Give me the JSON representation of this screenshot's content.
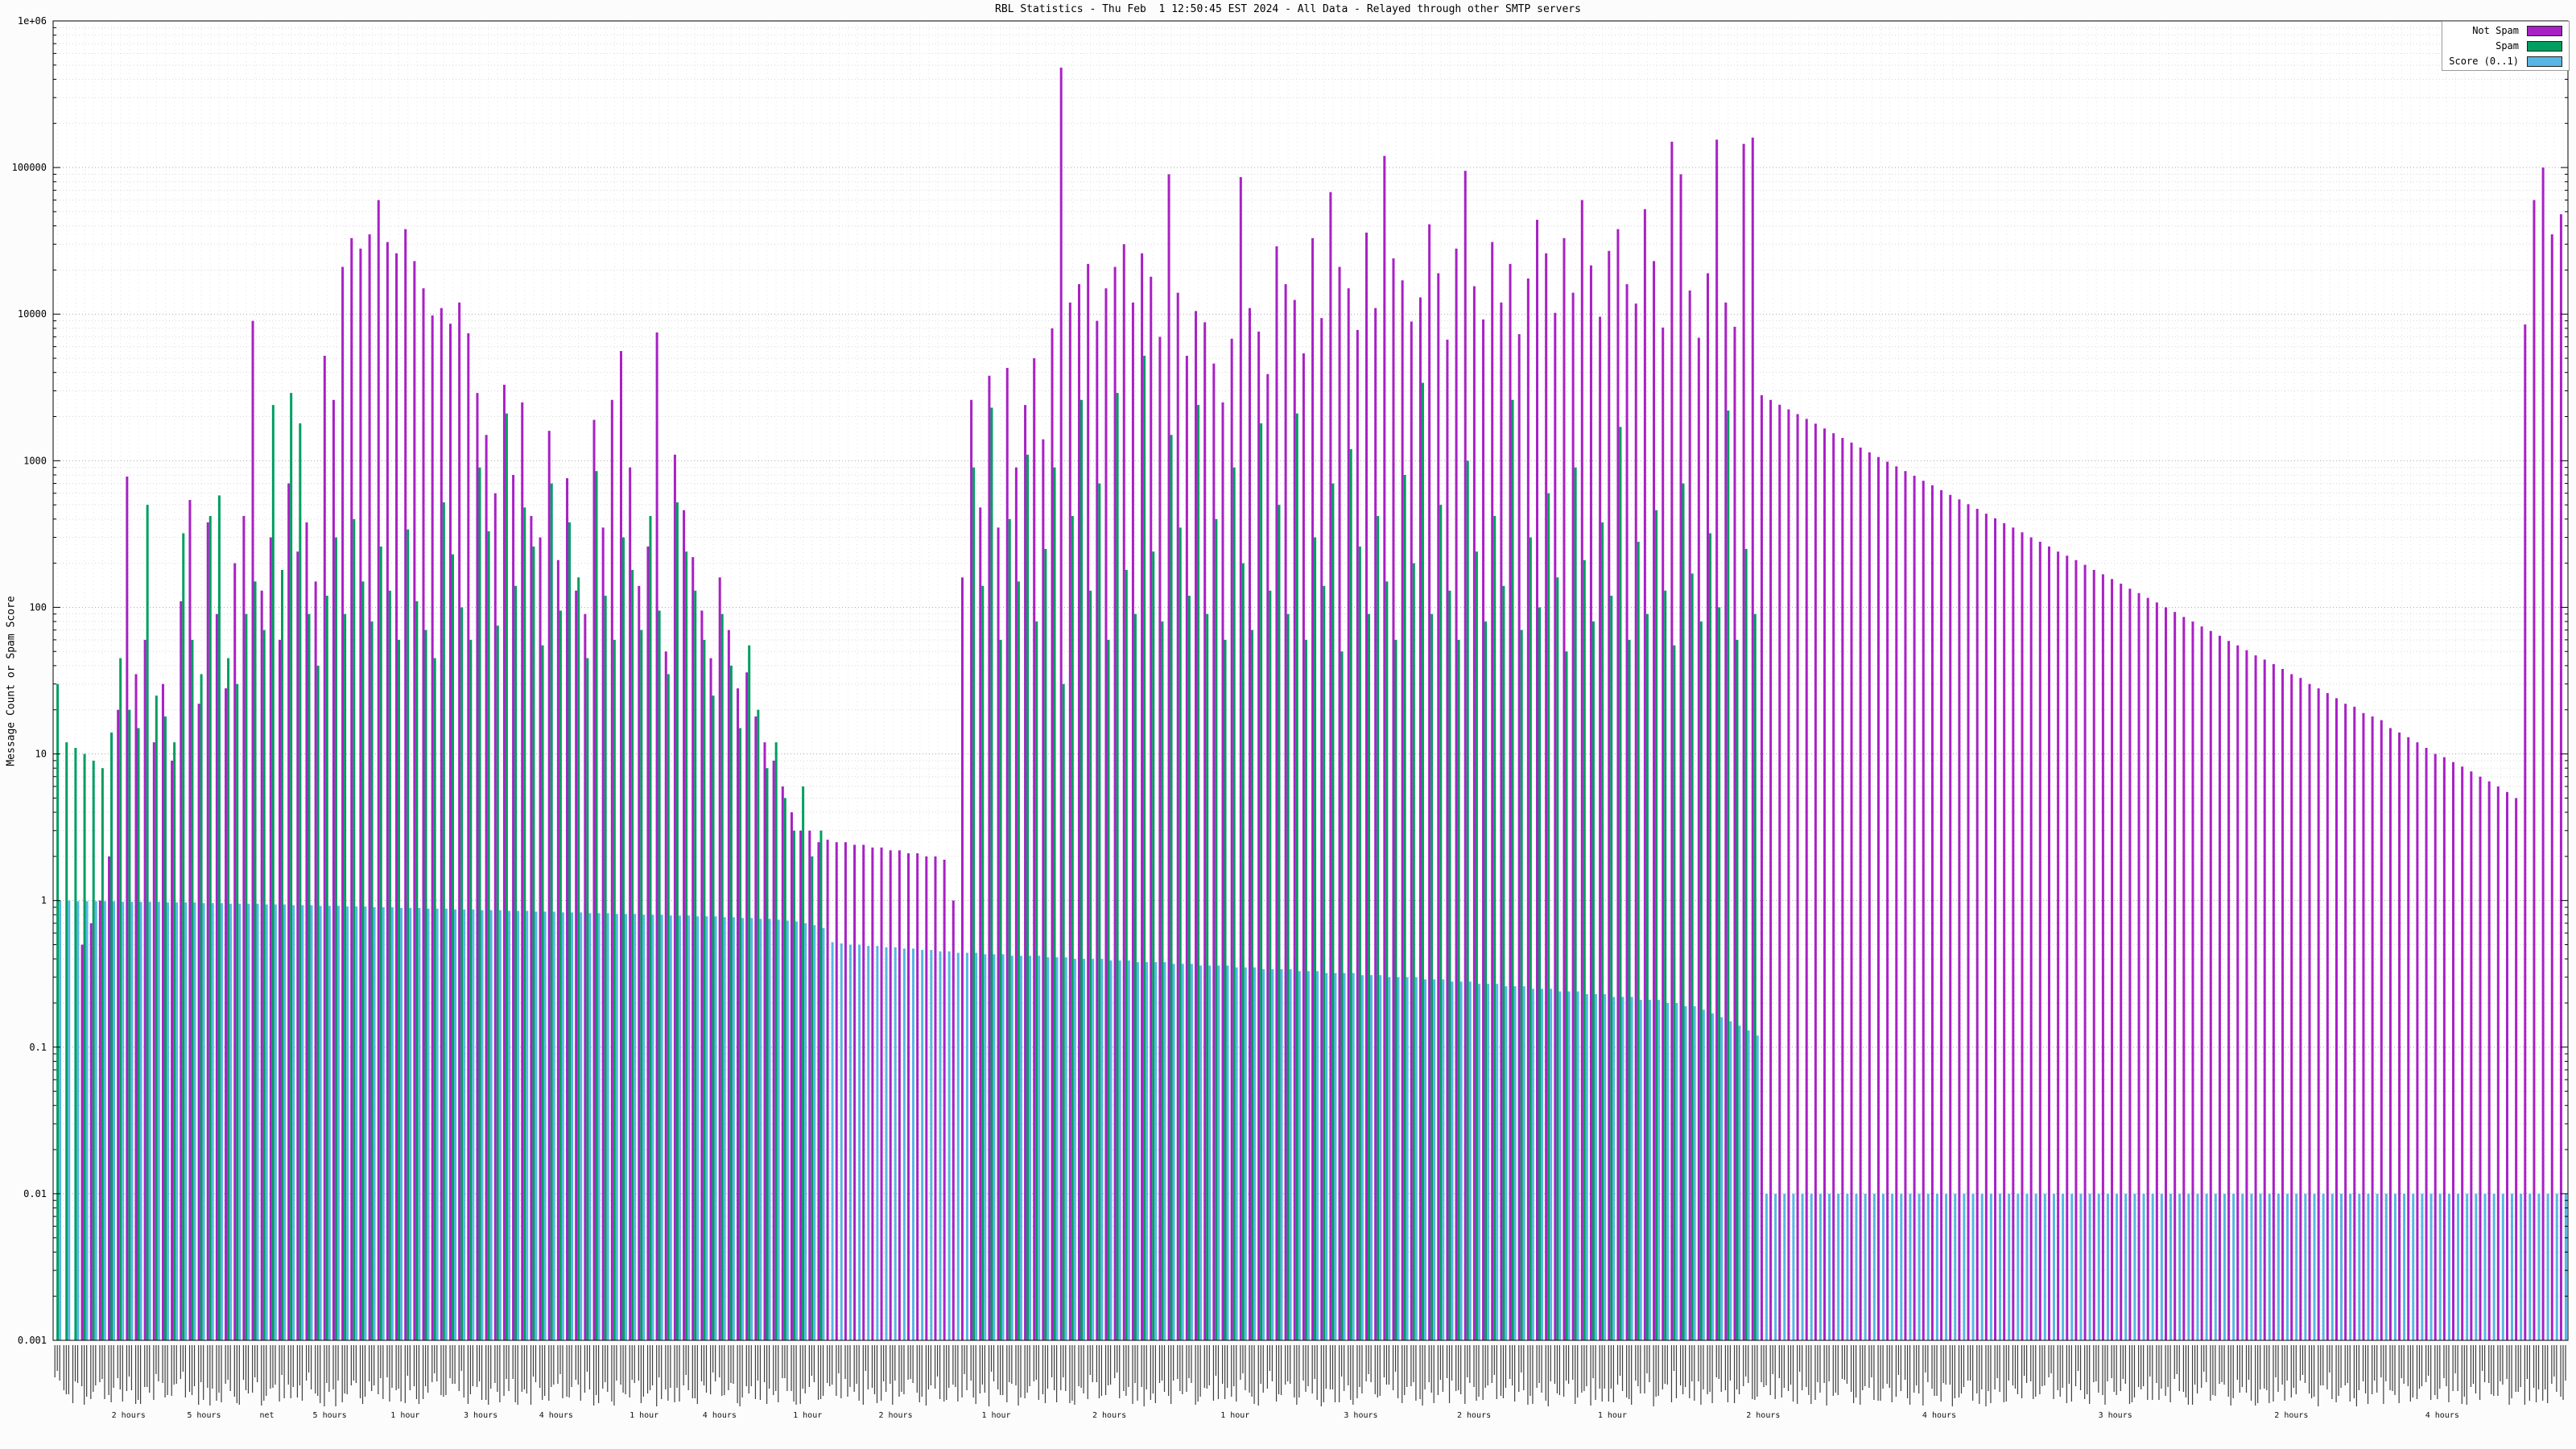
{
  "title": "RBL Statistics - Thu Feb  1 12:50:45 EST 2024 - All Data - Relayed through other SMTP servers",
  "y_axis": {
    "label": "Message Count or Spam Score",
    "min_exp": -3,
    "max_exp": 6,
    "ticks": [
      "1e+06",
      "100000",
      "10000",
      "1000",
      "100",
      "10",
      "1",
      "0.1",
      "0.01",
      "0.001"
    ]
  },
  "x_axis": {
    "labels_legible": false,
    "sub_labels": [
      {
        "f": 0.03,
        "text": "2 hours"
      },
      {
        "f": 0.06,
        "text": "5 hours"
      },
      {
        "f": 0.085,
        "text": "net"
      },
      {
        "f": 0.11,
        "text": "5 hours"
      },
      {
        "f": 0.14,
        "text": "1 hour"
      },
      {
        "f": 0.17,
        "text": "3 hours"
      },
      {
        "f": 0.2,
        "text": "4 hours"
      },
      {
        "f": 0.235,
        "text": "1 hour"
      },
      {
        "f": 0.265,
        "text": "4 hours"
      },
      {
        "f": 0.3,
        "text": "1 hour"
      },
      {
        "f": 0.335,
        "text": "2 hours"
      },
      {
        "f": 0.375,
        "text": "1 hour"
      },
      {
        "f": 0.42,
        "text": "2 hours"
      },
      {
        "f": 0.47,
        "text": "1 hour"
      },
      {
        "f": 0.52,
        "text": "3 hours"
      },
      {
        "f": 0.565,
        "text": "2 hours"
      },
      {
        "f": 0.62,
        "text": "1 hour"
      },
      {
        "f": 0.68,
        "text": "2 hours"
      },
      {
        "f": 0.75,
        "text": "4 hours"
      },
      {
        "f": 0.82,
        "text": "3 hours"
      },
      {
        "f": 0.89,
        "text": "2 hours"
      },
      {
        "f": 0.95,
        "text": "4 hours"
      }
    ]
  },
  "legend": {
    "entries": [
      {
        "label": "Not Spam",
        "color": "#a821c4"
      },
      {
        "label": "Spam",
        "color": "#009e60"
      },
      {
        "label": "Score (0..1)",
        "color": "#58b6e4"
      }
    ]
  },
  "chart_data": {
    "type": "bar",
    "y_scale": "log",
    "ylim": [
      0.001,
      1000000
    ],
    "grid": true,
    "legend_position": "top-right",
    "series": [
      "Spam",
      "Not Spam",
      "Score (0..1)"
    ],
    "point_format": [
      "spam_count",
      "not_spam_count",
      "spam_score"
    ],
    "points": [
      [
        30,
        0,
        1.0
      ],
      [
        12,
        0,
        1.0
      ],
      [
        11,
        0,
        0.99
      ],
      [
        10,
        0.5,
        0.99
      ],
      [
        9,
        0.7,
        0.99
      ],
      [
        8,
        1,
        0.99
      ],
      [
        14,
        2,
        0.99
      ],
      [
        45,
        20,
        0.98
      ],
      [
        20,
        780,
        0.98
      ],
      [
        15,
        35,
        0.98
      ],
      [
        500,
        60,
        0.98
      ],
      [
        25,
        12,
        0.98
      ],
      [
        18,
        30,
        0.97
      ],
      [
        12,
        9,
        0.97
      ],
      [
        320,
        110,
        0.97
      ],
      [
        60,
        540,
        0.97
      ],
      [
        35,
        22,
        0.96
      ],
      [
        420,
        380,
        0.96
      ],
      [
        580,
        90,
        0.96
      ],
      [
        45,
        28,
        0.95
      ],
      [
        30,
        200,
        0.95
      ],
      [
        90,
        420,
        0.95
      ],
      [
        150,
        9000,
        0.95
      ],
      [
        70,
        130,
        0.94
      ],
      [
        2400,
        300,
        0.94
      ],
      [
        180,
        60,
        0.94
      ],
      [
        2900,
        700,
        0.93
      ],
      [
        1800,
        240,
        0.93
      ],
      [
        90,
        380,
        0.93
      ],
      [
        40,
        150,
        0.92
      ],
      [
        120,
        5200,
        0.92
      ],
      [
        300,
        2600,
        0.92
      ],
      [
        90,
        21000,
        0.91
      ],
      [
        400,
        33000,
        0.91
      ],
      [
        150,
        28000,
        0.91
      ],
      [
        80,
        35000,
        0.9
      ],
      [
        260,
        60000,
        0.9
      ],
      [
        130,
        31000,
        0.9
      ],
      [
        60,
        26000,
        0.89
      ],
      [
        340,
        38000,
        0.89
      ],
      [
        110,
        23000,
        0.89
      ],
      [
        70,
        15000,
        0.88
      ],
      [
        45,
        9800,
        0.88
      ],
      [
        520,
        11000,
        0.88
      ],
      [
        230,
        8600,
        0.87
      ],
      [
        100,
        12000,
        0.87
      ],
      [
        60,
        7400,
        0.87
      ],
      [
        900,
        2900,
        0.86
      ],
      [
        330,
        1500,
        0.86
      ],
      [
        75,
        600,
        0.86
      ],
      [
        2100,
        3300,
        0.85
      ],
      [
        140,
        800,
        0.85
      ],
      [
        480,
        2500,
        0.85
      ],
      [
        260,
        420,
        0.84
      ],
      [
        55,
        300,
        0.84
      ],
      [
        700,
        1600,
        0.84
      ],
      [
        95,
        210,
        0.83
      ],
      [
        380,
        760,
        0.83
      ],
      [
        160,
        130,
        0.83
      ],
      [
        45,
        90,
        0.82
      ],
      [
        850,
        1900,
        0.82
      ],
      [
        120,
        350,
        0.82
      ],
      [
        60,
        2600,
        0.81
      ],
      [
        300,
        5600,
        0.81
      ],
      [
        180,
        900,
        0.81
      ],
      [
        70,
        140,
        0.8
      ],
      [
        420,
        260,
        0.8
      ],
      [
        95,
        7500,
        0.8
      ],
      [
        35,
        50,
        0.79
      ],
      [
        520,
        1100,
        0.79
      ],
      [
        240,
        460,
        0.79
      ],
      [
        130,
        220,
        0.78
      ],
      [
        60,
        95,
        0.78
      ],
      [
        25,
        45,
        0.78
      ],
      [
        90,
        160,
        0.77
      ],
      [
        40,
        70,
        0.77
      ],
      [
        15,
        28,
        0.76
      ],
      [
        55,
        36,
        0.76
      ],
      [
        20,
        18,
        0.75
      ],
      [
        8,
        12,
        0.75
      ],
      [
        12,
        9,
        0.74
      ],
      [
        5,
        6,
        0.73
      ],
      [
        3,
        4,
        0.72
      ],
      [
        6,
        3,
        0.7
      ],
      [
        2,
        3,
        0.68
      ],
      [
        3,
        2.5,
        0.65
      ],
      [
        0,
        2.6,
        0.52
      ],
      [
        0,
        2.5,
        0.51
      ],
      [
        0,
        2.5,
        0.5
      ],
      [
        0,
        2.4,
        0.5
      ],
      [
        0,
        2.4,
        0.49
      ],
      [
        0,
        2.3,
        0.49
      ],
      [
        0,
        2.3,
        0.48
      ],
      [
        0,
        2.2,
        0.48
      ],
      [
        0,
        2.2,
        0.47
      ],
      [
        0,
        2.1,
        0.47
      ],
      [
        0,
        2.1,
        0.46
      ],
      [
        0,
        2.0,
        0.46
      ],
      [
        0,
        2.0,
        0.45
      ],
      [
        0,
        1.9,
        0.45
      ],
      [
        0,
        1.0,
        0.44
      ],
      [
        0,
        160,
        0.44
      ],
      [
        900,
        2600,
        0.44
      ],
      [
        140,
        480,
        0.43
      ],
      [
        2300,
        3800,
        0.43
      ],
      [
        60,
        350,
        0.43
      ],
      [
        400,
        4300,
        0.42
      ],
      [
        150,
        900,
        0.42
      ],
      [
        1100,
        2400,
        0.42
      ],
      [
        80,
        5000,
        0.42
      ],
      [
        250,
        1400,
        0.41
      ],
      [
        900,
        8000,
        0.41
      ],
      [
        30,
        480000,
        0.41
      ],
      [
        420,
        12000,
        0.4
      ],
      [
        2600,
        16000,
        0.4
      ],
      [
        130,
        22000,
        0.4
      ],
      [
        700,
        9000,
        0.4
      ],
      [
        60,
        15000,
        0.39
      ],
      [
        2900,
        21000,
        0.39
      ],
      [
        180,
        30000,
        0.39
      ],
      [
        90,
        12000,
        0.38
      ],
      [
        5200,
        26000,
        0.38
      ],
      [
        240,
        18000,
        0.38
      ],
      [
        80,
        7000,
        0.38
      ],
      [
        1500,
        90000,
        0.37
      ],
      [
        350,
        14000,
        0.37
      ],
      [
        120,
        5200,
        0.37
      ],
      [
        2400,
        10500,
        0.36
      ],
      [
        90,
        8800,
        0.36
      ],
      [
        400,
        4600,
        0.36
      ],
      [
        60,
        2500,
        0.36
      ],
      [
        900,
        6800,
        0.35
      ],
      [
        200,
        86000,
        0.35
      ],
      [
        70,
        11000,
        0.35
      ],
      [
        1800,
        7600,
        0.34
      ],
      [
        130,
        3900,
        0.34
      ],
      [
        500,
        29000,
        0.34
      ],
      [
        90,
        16000,
        0.34
      ],
      [
        2100,
        12500,
        0.33
      ],
      [
        60,
        5400,
        0.33
      ],
      [
        300,
        33000,
        0.33
      ],
      [
        140,
        9400,
        0.32
      ],
      [
        700,
        68000,
        0.32
      ],
      [
        50,
        21000,
        0.32
      ],
      [
        1200,
        15000,
        0.32
      ],
      [
        260,
        7800,
        0.31
      ],
      [
        90,
        36000,
        0.31
      ],
      [
        420,
        11000,
        0.31
      ],
      [
        150,
        120000,
        0.3
      ],
      [
        60,
        24000,
        0.3
      ],
      [
        800,
        17000,
        0.3
      ],
      [
        200,
        8900,
        0.3
      ],
      [
        3400,
        13000,
        0.29
      ],
      [
        90,
        41000,
        0.29
      ],
      [
        500,
        19000,
        0.29
      ],
      [
        130,
        6700,
        0.28
      ],
      [
        60,
        28000,
        0.28
      ],
      [
        1000,
        95000,
        0.28
      ],
      [
        240,
        15500,
        0.27
      ],
      [
        80,
        9200,
        0.27
      ],
      [
        420,
        31000,
        0.27
      ],
      [
        140,
        12000,
        0.26
      ],
      [
        2600,
        22000,
        0.26
      ],
      [
        70,
        7300,
        0.26
      ],
      [
        300,
        17500,
        0.25
      ],
      [
        100,
        44000,
        0.25
      ],
      [
        600,
        26000,
        0.25
      ],
      [
        160,
        10200,
        0.24
      ],
      [
        50,
        33000,
        0.24
      ],
      [
        900,
        14000,
        0.24
      ],
      [
        210,
        60000,
        0.23
      ],
      [
        80,
        21500,
        0.23
      ],
      [
        380,
        9600,
        0.23
      ],
      [
        120,
        27000,
        0.22
      ],
      [
        1700,
        38000,
        0.22
      ],
      [
        60,
        16000,
        0.22
      ],
      [
        280,
        11800,
        0.21
      ],
      [
        90,
        52000,
        0.21
      ],
      [
        460,
        23000,
        0.21
      ],
      [
        130,
        8100,
        0.2
      ],
      [
        55,
        150000,
        0.2
      ],
      [
        700,
        90000,
        0.19
      ],
      [
        170,
        14500,
        0.19
      ],
      [
        80,
        6900,
        0.18
      ],
      [
        320,
        19000,
        0.17
      ],
      [
        100,
        155000,
        0.16
      ],
      [
        2200,
        12000,
        0.15
      ],
      [
        60,
        8200,
        0.14
      ],
      [
        250,
        145000,
        0.13
      ],
      [
        90,
        160000,
        0.12
      ],
      [
        0,
        2800,
        0.01
      ],
      [
        0,
        2600,
        0.01
      ],
      [
        0,
        2410,
        0.01
      ],
      [
        0,
        2240,
        0.01
      ],
      [
        0,
        2080,
        0.01
      ],
      [
        0,
        1930,
        0.01
      ],
      [
        0,
        1790,
        0.01
      ],
      [
        0,
        1660,
        0.01
      ],
      [
        0,
        1540,
        0.01
      ],
      [
        0,
        1430,
        0.01
      ],
      [
        0,
        1330,
        0.01
      ],
      [
        0,
        1230,
        0.01
      ],
      [
        0,
        1140,
        0.01
      ],
      [
        0,
        1060,
        0.01
      ],
      [
        0,
        985,
        0.01
      ],
      [
        0,
        915,
        0.01
      ],
      [
        0,
        850,
        0.01
      ],
      [
        0,
        790,
        0.01
      ],
      [
        0,
        730,
        0.01
      ],
      [
        0,
        680,
        0.01
      ],
      [
        0,
        630,
        0.01
      ],
      [
        0,
        585,
        0.01
      ],
      [
        0,
        545,
        0.01
      ],
      [
        0,
        505,
        0.01
      ],
      [
        0,
        470,
        0.01
      ],
      [
        0,
        435,
        0.01
      ],
      [
        0,
        405,
        0.01
      ],
      [
        0,
        375,
        0.01
      ],
      [
        0,
        350,
        0.01
      ],
      [
        0,
        325,
        0.01
      ],
      [
        0,
        300,
        0.01
      ],
      [
        0,
        280,
        0.01
      ],
      [
        0,
        260,
        0.01
      ],
      [
        0,
        240,
        0.01
      ],
      [
        0,
        225,
        0.01
      ],
      [
        0,
        210,
        0.01
      ],
      [
        0,
        195,
        0.01
      ],
      [
        0,
        180,
        0.01
      ],
      [
        0,
        168,
        0.01
      ],
      [
        0,
        156,
        0.01
      ],
      [
        0,
        145,
        0.01
      ],
      [
        0,
        134,
        0.01
      ],
      [
        0,
        125,
        0.01
      ],
      [
        0,
        116,
        0.01
      ],
      [
        0,
        108,
        0.01
      ],
      [
        0,
        100,
        0.01
      ],
      [
        0,
        93,
        0.01
      ],
      [
        0,
        86,
        0.01
      ],
      [
        0,
        80,
        0.01
      ],
      [
        0,
        74,
        0.01
      ],
      [
        0,
        69,
        0.01
      ],
      [
        0,
        64,
        0.01
      ],
      [
        0,
        59,
        0.01
      ],
      [
        0,
        55,
        0.01
      ],
      [
        0,
        51,
        0.01
      ],
      [
        0,
        47,
        0.01
      ],
      [
        0,
        44,
        0.01
      ],
      [
        0,
        41,
        0.01
      ],
      [
        0,
        38,
        0.01
      ],
      [
        0,
        35,
        0.01
      ],
      [
        0,
        33,
        0.01
      ],
      [
        0,
        30,
        0.01
      ],
      [
        0,
        28,
        0.01
      ],
      [
        0,
        26,
        0.01
      ],
      [
        0,
        24,
        0.01
      ],
      [
        0,
        22,
        0.01
      ],
      [
        0,
        21,
        0.01
      ],
      [
        0,
        19,
        0.01
      ],
      [
        0,
        18,
        0.01
      ],
      [
        0,
        17,
        0.01
      ],
      [
        0,
        15,
        0.01
      ],
      [
        0,
        14,
        0.01
      ],
      [
        0,
        13,
        0.01
      ],
      [
        0,
        12,
        0.01
      ],
      [
        0,
        11,
        0.01
      ],
      [
        0,
        10,
        0.01
      ],
      [
        0,
        9.5,
        0.01
      ],
      [
        0,
        8.8,
        0.01
      ],
      [
        0,
        8.2,
        0.01
      ],
      [
        0,
        7.6,
        0.01
      ],
      [
        0,
        7,
        0.01
      ],
      [
        0,
        6.5,
        0.01
      ],
      [
        0,
        6,
        0.01
      ],
      [
        0,
        5.5,
        0.01
      ],
      [
        0,
        5,
        0.01
      ],
      [
        0,
        8500,
        0.01
      ],
      [
        0,
        60000,
        0.01
      ],
      [
        0,
        100000,
        0.01
      ],
      [
        0,
        35000,
        0.01
      ],
      [
        0,
        48000,
        0.01
      ]
    ]
  }
}
